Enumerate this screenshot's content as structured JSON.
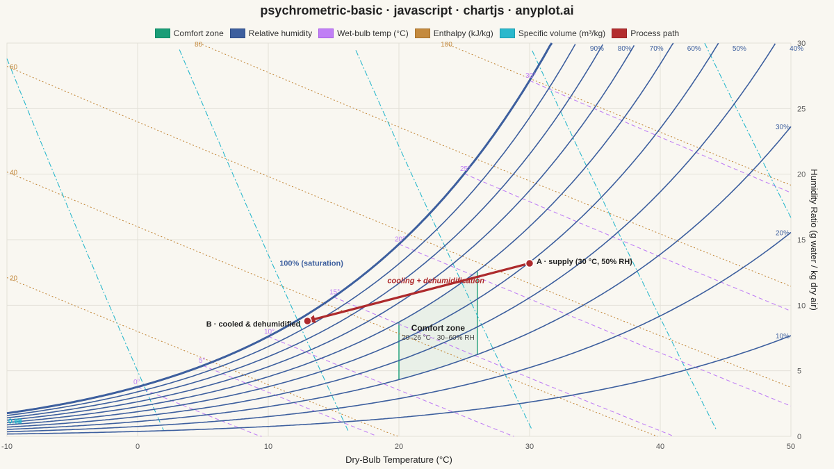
{
  "title": "psychrometric-basic · javascript · chartjs · anyplot.ai",
  "legend": [
    {
      "label": "Comfort zone",
      "color": "#1a9d77",
      "border": "#0f8a66"
    },
    {
      "label": "Relative humidity",
      "color": "#3d5f9e",
      "border": "#2f4d86"
    },
    {
      "label": "Wet-bulb temp (°C)",
      "color": "#c07ff5",
      "border": "#a95ee6"
    },
    {
      "label": "Enthalpy (kJ/kg)",
      "color": "#c48a3e",
      "border": "#a8722b"
    },
    {
      "label": "Specific volume (m³/kg)",
      "color": "#2ab8cc",
      "border": "#1c9fb1"
    },
    {
      "label": "Process path",
      "color": "#b32d2e",
      "border": "#9a2223"
    }
  ],
  "colors": {
    "rh": "#3d5f9e",
    "wetbulb": "#c07ff5",
    "enthalpy": "#c48a3e",
    "volume": "#2ab8cc",
    "comfort": "#1a9d77",
    "process": "#ad2a2c",
    "grid": "#e3e0d8"
  },
  "chart_data": {
    "type": "line",
    "xlabel": "Dry-Bulb Temperature (°C)",
    "ylabel": "Humidity Ratio (g water / kg dry air)",
    "xlim": [
      -10,
      50
    ],
    "ylim": [
      0,
      30
    ],
    "xticks": [
      "-10",
      "0",
      "10",
      "20",
      "30",
      "40",
      "50"
    ],
    "yticks": [
      "0",
      "5",
      "10",
      "15",
      "20",
      "25",
      "30"
    ],
    "rh_curves": [
      {
        "rh": 100,
        "label": "100% (saturation)"
      },
      {
        "rh": 90,
        "label": "90%"
      },
      {
        "rh": 80,
        "label": "80%"
      },
      {
        "rh": 70,
        "label": "70%"
      },
      {
        "rh": 60,
        "label": "60%"
      },
      {
        "rh": 50,
        "label": "50%"
      },
      {
        "rh": 40,
        "label": "40%"
      },
      {
        "rh": 30,
        "label": "30%"
      },
      {
        "rh": 20,
        "label": "20%"
      },
      {
        "rh": 10,
        "label": "10%"
      }
    ],
    "wetbulb_lines": [
      {
        "twb": 0,
        "label": "0°"
      },
      {
        "twb": 5,
        "label": "5°"
      },
      {
        "twb": 10,
        "label": "10°"
      },
      {
        "twb": 15,
        "label": "15°"
      },
      {
        "twb": 20,
        "label": "20°"
      },
      {
        "twb": 25,
        "label": "25°"
      },
      {
        "twb": 30,
        "label": "30°"
      }
    ],
    "enthalpy_lines": [
      {
        "h": 20,
        "label": "20"
      },
      {
        "h": 40,
        "label": "40"
      },
      {
        "h": 60,
        "label": "60"
      },
      {
        "h": 80,
        "label": "80"
      },
      {
        "h": 100,
        "label": "100"
      }
    ],
    "volume_lines": [
      {
        "v": 0.78,
        "label": "0.78"
      },
      {
        "v": 0.82,
        "label": "0.82"
      },
      {
        "v": 0.86,
        "label": "0.86"
      },
      {
        "v": 0.9,
        "label": "0.90"
      },
      {
        "v": 0.94,
        "label": "0.94"
      }
    ],
    "comfort_zone": {
      "label": "Comfort zone",
      "sublabel": "20–26 °C · 30–60% RH",
      "t_range": [
        20,
        26
      ],
      "rh_range": [
        30,
        60
      ]
    },
    "process": {
      "label": "cooling + dehumidification",
      "start": {
        "t": 30,
        "w": 13.2,
        "label": "A · supply (30 °C, 50% RH)"
      },
      "end": {
        "t": 13,
        "w": 8.8,
        "label": "B · cooled & dehumidified"
      }
    }
  }
}
